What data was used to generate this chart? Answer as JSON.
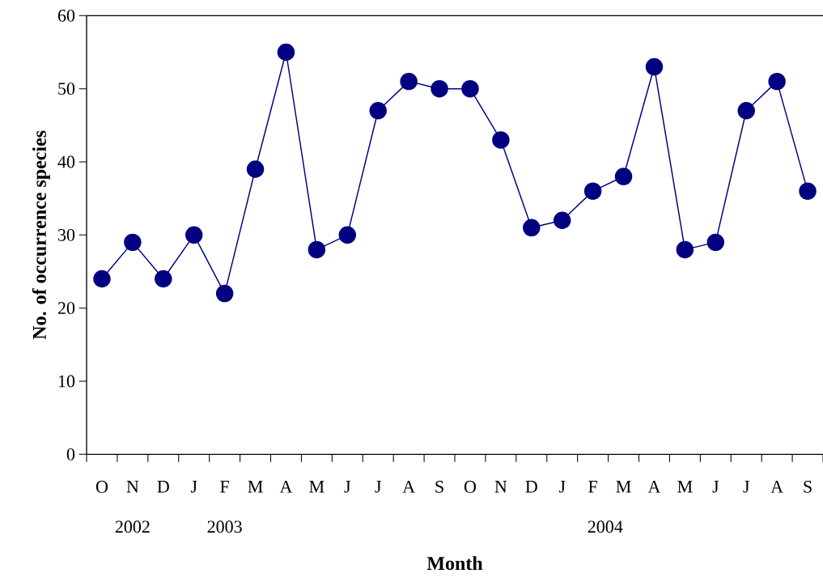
{
  "chart_data": {
    "type": "line",
    "xlabel": "Month",
    "ylabel": "No. of occurrence species",
    "categories": [
      "O",
      "N",
      "D",
      "J",
      "F",
      "M",
      "A",
      "M",
      "J",
      "J",
      "A",
      "S",
      "O",
      "N",
      "D",
      "J",
      "F",
      "M",
      "A",
      "M",
      "J",
      "J",
      "A",
      "S"
    ],
    "values": [
      24,
      29,
      24,
      30,
      22,
      39,
      55,
      28,
      30,
      47,
      51,
      50,
      50,
      43,
      31,
      32,
      36,
      38,
      53,
      28,
      29,
      47,
      51,
      36
    ],
    "color": "#000080",
    "marker": "circle",
    "line_style": "solid",
    "ylim": [
      0,
      60
    ],
    "yticks": [
      0,
      10,
      20,
      30,
      40,
      50,
      60
    ],
    "annotations": [
      "2002",
      "2003",
      "2004"
    ]
  }
}
